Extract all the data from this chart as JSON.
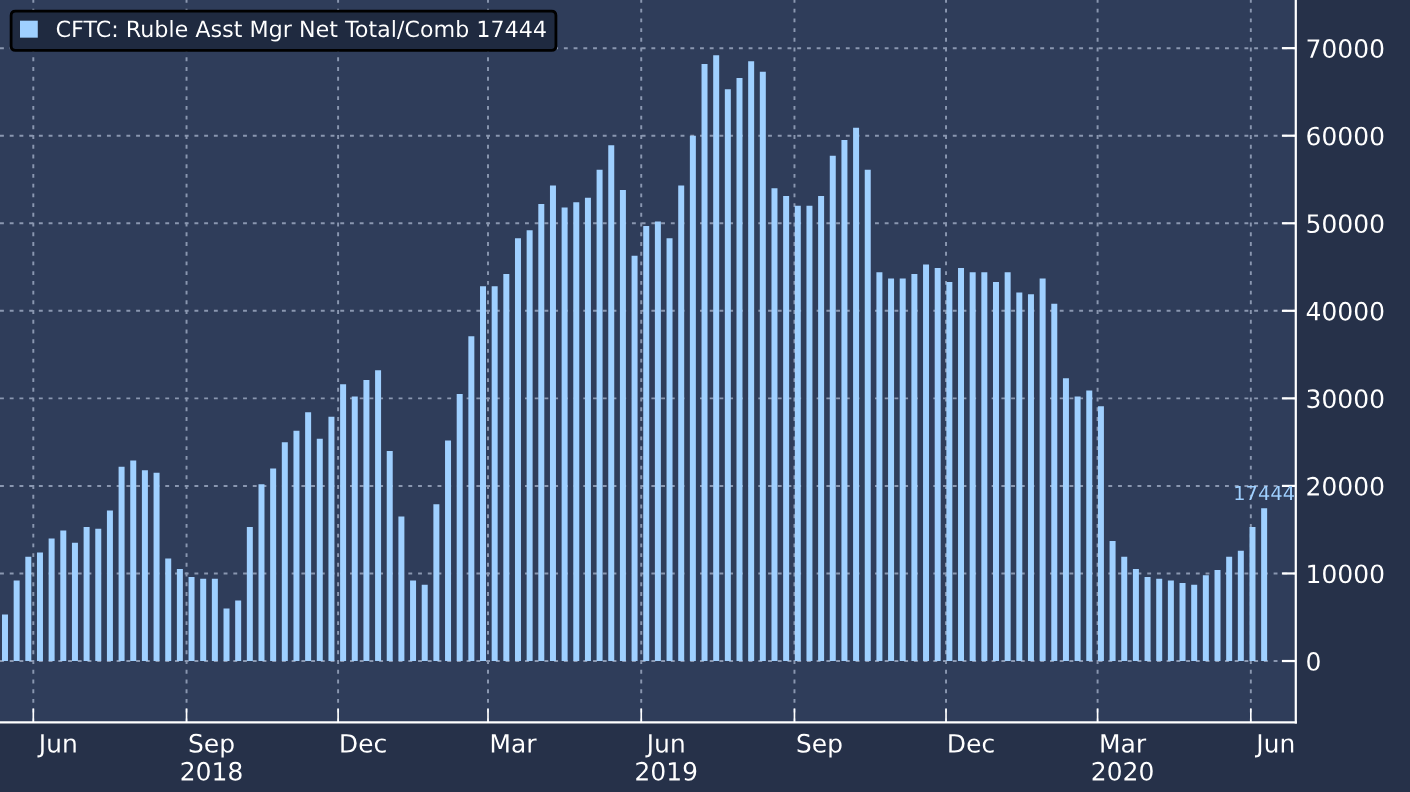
{
  "chart_data": {
    "type": "bar",
    "x": [
      "2018-05-15",
      "2018-05-22",
      "2018-05-29",
      "2018-06-05",
      "2018-06-12",
      "2018-06-19",
      "2018-06-26",
      "2018-07-03",
      "2018-07-10",
      "2018-07-17",
      "2018-07-24",
      "2018-07-31",
      "2018-08-07",
      "2018-08-14",
      "2018-08-21",
      "2018-08-28",
      "2018-09-04",
      "2018-09-11",
      "2018-09-18",
      "2018-09-25",
      "2018-10-02",
      "2018-10-09",
      "2018-10-16",
      "2018-10-23",
      "2018-10-30",
      "2018-11-06",
      "2018-11-13",
      "2018-11-20",
      "2018-11-27",
      "2018-12-04",
      "2018-12-11",
      "2018-12-18",
      "2018-12-25",
      "2019-01-01",
      "2019-01-08",
      "2019-01-15",
      "2019-01-22",
      "2019-01-29",
      "2019-02-05",
      "2019-02-12",
      "2019-02-19",
      "2019-02-26",
      "2019-03-05",
      "2019-03-12",
      "2019-03-19",
      "2019-03-26",
      "2019-04-02",
      "2019-04-09",
      "2019-04-16",
      "2019-04-23",
      "2019-04-30",
      "2019-05-07",
      "2019-05-14",
      "2019-05-21",
      "2019-05-28",
      "2019-06-04",
      "2019-06-11",
      "2019-06-18",
      "2019-06-25",
      "2019-07-02",
      "2019-07-09",
      "2019-07-16",
      "2019-07-23",
      "2019-07-30",
      "2019-08-06",
      "2019-08-13",
      "2019-08-20",
      "2019-08-27",
      "2019-09-03",
      "2019-09-10",
      "2019-09-17",
      "2019-09-24",
      "2019-10-01",
      "2019-10-08",
      "2019-10-15",
      "2019-10-22",
      "2019-10-29",
      "2019-11-05",
      "2019-11-12",
      "2019-11-19",
      "2019-11-26",
      "2019-12-03",
      "2019-12-10",
      "2019-12-17",
      "2019-12-24",
      "2019-12-31",
      "2020-01-07",
      "2020-01-14",
      "2020-01-21",
      "2020-01-28",
      "2020-02-04",
      "2020-02-11",
      "2020-02-18",
      "2020-02-25",
      "2020-03-03",
      "2020-03-10",
      "2020-03-17",
      "2020-03-24",
      "2020-03-31",
      "2020-04-07",
      "2020-04-14",
      "2020-04-21",
      "2020-04-28",
      "2020-05-05",
      "2020-05-12",
      "2020-05-19",
      "2020-05-26",
      "2020-06-02",
      "2020-06-09"
    ],
    "series": [
      {
        "name": "CFTC: Ruble Asst Mgr Net Total/Comb 17444",
        "color": "#9fd0ff",
        "values": [
          5300,
          9200,
          11900,
          12400,
          14000,
          14900,
          13500,
          15300,
          15100,
          17200,
          22200,
          22900,
          21800,
          21500,
          11700,
          10500,
          9600,
          9400,
          9400,
          6000,
          6900,
          15300,
          20200,
          22000,
          25000,
          26300,
          28400,
          25400,
          27900,
          31600,
          30200,
          32100,
          33200,
          24000,
          16500,
          9200,
          8700,
          17900,
          25200,
          30500,
          37100,
          42800,
          42800,
          44200,
          48300,
          49200,
          52200,
          54300,
          51800,
          52400,
          52900,
          56100,
          58900,
          53800,
          46300,
          49700,
          50200,
          48300,
          54300,
          60000,
          68200,
          69200,
          65300,
          66600,
          68500,
          67300,
          54000,
          53100,
          52000,
          52000,
          53100,
          57700,
          59500,
          60900,
          56100,
          44400,
          43700,
          43700,
          44200,
          45300,
          44900,
          43300,
          44900,
          44400,
          44400,
          43300,
          44400,
          42100,
          41900,
          43700,
          40800,
          32300,
          30200,
          30900,
          29100,
          13700,
          11900,
          10500,
          9600,
          9400,
          9200,
          8900,
          8700,
          9800,
          10400,
          11900,
          12600,
          15300,
          17444
        ],
        "value_labels": [
          null,
          null,
          null,
          null,
          null,
          null,
          null,
          null,
          null,
          null,
          null,
          null,
          null,
          null,
          null,
          null,
          null,
          null,
          null,
          null,
          null,
          null,
          null,
          null,
          null,
          null,
          null,
          null,
          null,
          null,
          null,
          null,
          null,
          null,
          null,
          null,
          null,
          null,
          null,
          null,
          null,
          null,
          null,
          null,
          null,
          null,
          null,
          null,
          null,
          null,
          null,
          null,
          null,
          null,
          null,
          null,
          null,
          null,
          null,
          null,
          null,
          null,
          null,
          null,
          null,
          null,
          null,
          null,
          null,
          null,
          null,
          null,
          null,
          null,
          null,
          null,
          null,
          null,
          null,
          null,
          null,
          null,
          null,
          null,
          null,
          null,
          null,
          null,
          null,
          null,
          null,
          null,
          null,
          null,
          null,
          null,
          null,
          null,
          null,
          null,
          null,
          null,
          null,
          null,
          null,
          null,
          null,
          null,
          "17444"
        ]
      }
    ],
    "xlim": [
      "2018-05-12",
      "2020-06-28"
    ],
    "xticks": [
      {
        "value": "2018-06-01",
        "label": null
      },
      {
        "value": "2018-09-01",
        "label": null
      },
      {
        "value": "2018-12-01",
        "label": null
      },
      {
        "value": "2019-03-01",
        "label": null
      },
      {
        "value": "2019-06-01",
        "label": null
      },
      {
        "value": "2019-09-01",
        "label": null
      },
      {
        "value": "2019-12-01",
        "label": null
      },
      {
        "value": "2020-03-01",
        "label": null
      },
      {
        "value": "2020-06-01",
        "label": null
      },
      {
        "value": "2018-06-16",
        "label": "Jun"
      },
      {
        "value": "2018-09-16",
        "label": "Sep\n2018"
      },
      {
        "value": "2018-12-16",
        "label": "Dec"
      },
      {
        "value": "2019-03-16",
        "label": "Mar"
      },
      {
        "value": "2019-06-16",
        "label": "Jun\n2019"
      },
      {
        "value": "2019-09-16",
        "label": "Sep"
      },
      {
        "value": "2019-12-16",
        "label": "Dec"
      },
      {
        "value": "2020-03-16",
        "label": "Mar\n2020"
      },
      {
        "value": "2020-06-16",
        "label": "Jun"
      }
    ],
    "ylim": [
      -7000,
      75500
    ],
    "yticks": [
      0,
      10000,
      20000,
      30000,
      40000,
      50000,
      60000,
      70000
    ],
    "grid": true,
    "legend": "top left"
  }
}
